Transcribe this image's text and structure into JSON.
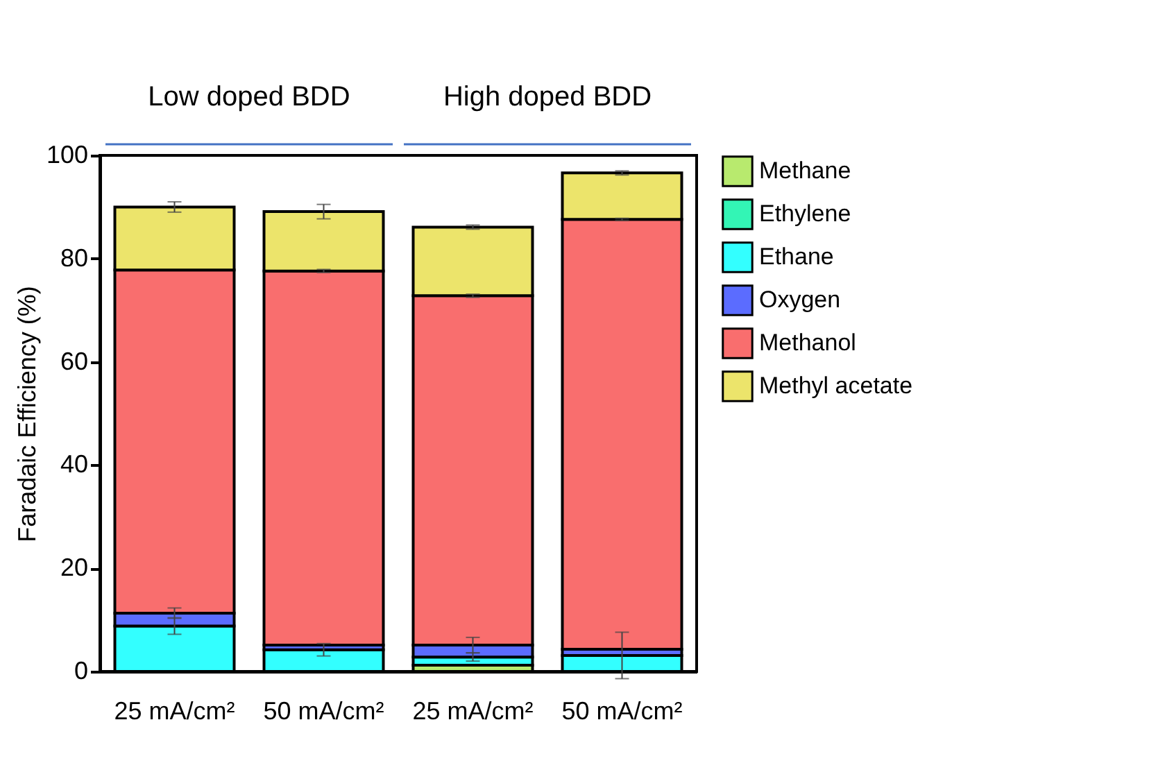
{
  "chart_data": {
    "type": "bar",
    "stacked": true,
    "ylabel": "Faradaic Efficiency (%)",
    "categories": [
      "25 mA/cm²",
      "50 mA/cm²",
      "25 mA/cm²",
      "50 mA/cm²"
    ],
    "series": [
      {
        "name": "Methane",
        "color": "#b8ea6e",
        "values": [
          null,
          null,
          1.2,
          null
        ]
      },
      {
        "name": "Ethylene",
        "color": "#33f5b5",
        "values": [
          null,
          null,
          null,
          null
        ]
      },
      {
        "name": "Ethane",
        "color": "#33ffff",
        "values": [
          8.8,
          4.2,
          1.6,
          3.1
        ],
        "errors": [
          1.6,
          1.2,
          0.8,
          4.5
        ]
      },
      {
        "name": "Oxygen",
        "color": "#5b6cff",
        "values": [
          2.5,
          0.9,
          2.3,
          1.2
        ],
        "errors": [
          1.0,
          null,
          1.5,
          null
        ]
      },
      {
        "name": "Methanol",
        "color": "#f96e6e",
        "values": [
          66.5,
          72.5,
          67.7,
          83.3
        ],
        "errors": [
          null,
          0.3,
          0.3,
          0.2
        ]
      },
      {
        "name": "Methyl acetate",
        "color": "#ece46b",
        "values": [
          12.2,
          11.5,
          13.3,
          9.0
        ],
        "errors": [
          1.0,
          1.4,
          0.4,
          0.4
        ]
      }
    ],
    "ylim": [
      0,
      100
    ],
    "yticks": [
      0,
      20,
      40,
      60,
      80,
      100
    ],
    "grid": false,
    "legend": "right",
    "annotations": [
      "Low doped BDD",
      "High doped BDD"
    ]
  }
}
